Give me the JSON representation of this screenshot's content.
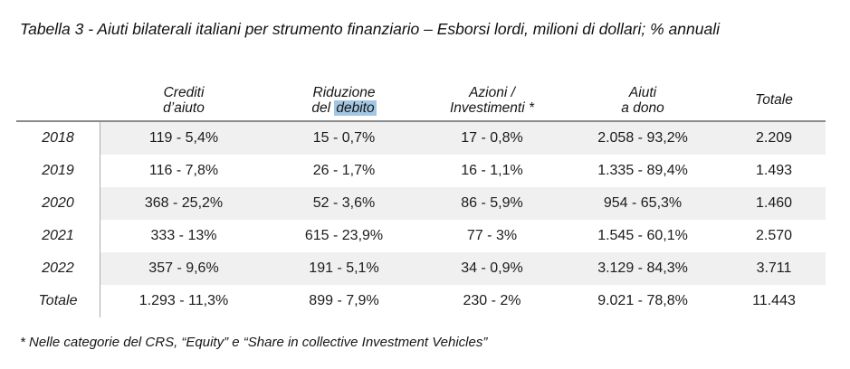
{
  "page": {
    "title": "Tabella 3 - Aiuti bilaterali italiani per strumento finanziario – Esborsi lordi, milioni di dollari; % annuali",
    "footnote": "* Nelle categorie del CRS, “Equity” e “Share in collective Investment Vehicles”"
  },
  "table": {
    "header": {
      "col1": {
        "line1": "Crediti",
        "line2": "d’aiuto"
      },
      "col2": {
        "line1": "Riduzione",
        "line2_prefix": "del ",
        "line2_highlighted": "debito"
      },
      "col3": {
        "line1": "Azioni /",
        "line2": "Investimenti *"
      },
      "col4": {
        "line1": "Aiuti",
        "line2": "a dono"
      },
      "col5": {
        "label": "Totale"
      }
    },
    "rows": [
      {
        "label": "2018",
        "cells": [
          "119 - 5,4%",
          "15 - 0,7%",
          "17 - 0,8%",
          "2.058 - 93,2%",
          "2.209"
        ]
      },
      {
        "label": "2019",
        "cells": [
          "116 - 7,8%",
          "26 - 1,7%",
          "16 - 1,1%",
          "1.335 - 89,4%",
          "1.493"
        ]
      },
      {
        "label": "2020",
        "cells": [
          "368 - 25,2%",
          "52 - 3,6%",
          "86 - 5,9%",
          "954 - 65,3%",
          "1.460"
        ]
      },
      {
        "label": "2021",
        "cells": [
          "333 - 13%",
          "615 - 23,9%",
          "77 - 3%",
          "1.545 - 60,1%",
          "2.570"
        ]
      },
      {
        "label": "2022",
        "cells": [
          "357 - 9,6%",
          "191 - 5,1%",
          "34 - 0,9%",
          "3.129 - 84,3%",
          "3.711"
        ]
      },
      {
        "label": "Totale",
        "cells": [
          "1.293 - 11,3%",
          "899 - 7,9%",
          "230 - 2%",
          "9.021 - 78,8%",
          "11.443"
        ]
      }
    ]
  },
  "colors": {
    "stripe": "#f0f0f0",
    "rule": "#8a8a8a",
    "divider": "#ababab",
    "highlight": "#a3c7e3"
  }
}
